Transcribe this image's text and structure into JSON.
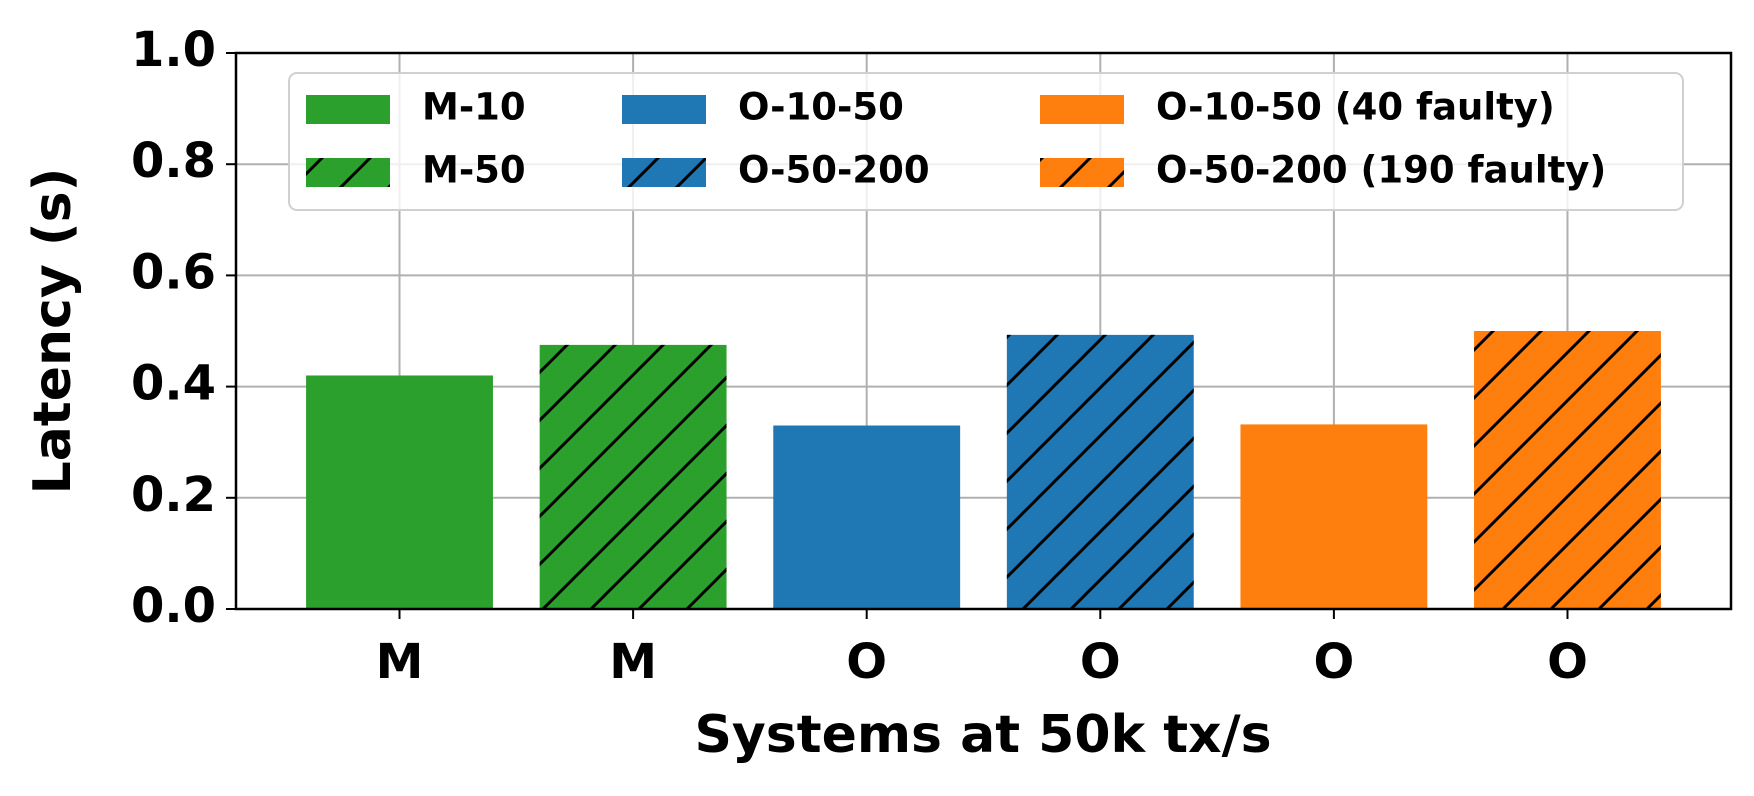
{
  "chart_data": {
    "type": "bar",
    "xlabel": "Systems at 50k tx/s",
    "ylabel": "Latency (s)",
    "categories": [
      "M",
      "M",
      "O",
      "O",
      "O",
      "O"
    ],
    "series": [
      {
        "name": "M-10",
        "color": "#2ca02c",
        "hatch": false,
        "values": [
          0.42,
          null,
          null,
          null,
          null,
          null
        ]
      },
      {
        "name": "M-50",
        "color": "#2ca02c",
        "hatch": true,
        "values": [
          null,
          0.475,
          null,
          null,
          null,
          null
        ]
      },
      {
        "name": "O-10-50",
        "color": "#1f77b4",
        "hatch": false,
        "values": [
          null,
          null,
          0.33,
          null,
          null,
          null
        ]
      },
      {
        "name": "O-50-200",
        "color": "#1f77b4",
        "hatch": true,
        "values": [
          null,
          null,
          null,
          0.493,
          null,
          null
        ]
      },
      {
        "name": "O-10-50 (40 faulty)",
        "color": "#ff7f0e",
        "hatch": false,
        "values": [
          null,
          null,
          null,
          null,
          0.332,
          null
        ]
      },
      {
        "name": "O-50-200 (190 faulty)",
        "color": "#ff7f0e",
        "hatch": true,
        "values": [
          null,
          null,
          null,
          null,
          null,
          0.5
        ]
      }
    ],
    "ylim": [
      0,
      1
    ],
    "yticks": [
      {
        "value": 0,
        "label": "0.0"
      },
      {
        "value": 0.2,
        "label": "0.2"
      },
      {
        "value": 0.4,
        "label": "0.4"
      },
      {
        "value": 0.6,
        "label": "0.6"
      },
      {
        "value": 0.8,
        "label": "0.8"
      },
      {
        "value": 1,
        "label": "1.0"
      }
    ],
    "grid": true,
    "legend": "upper center",
    "legend_columns": 3
  }
}
